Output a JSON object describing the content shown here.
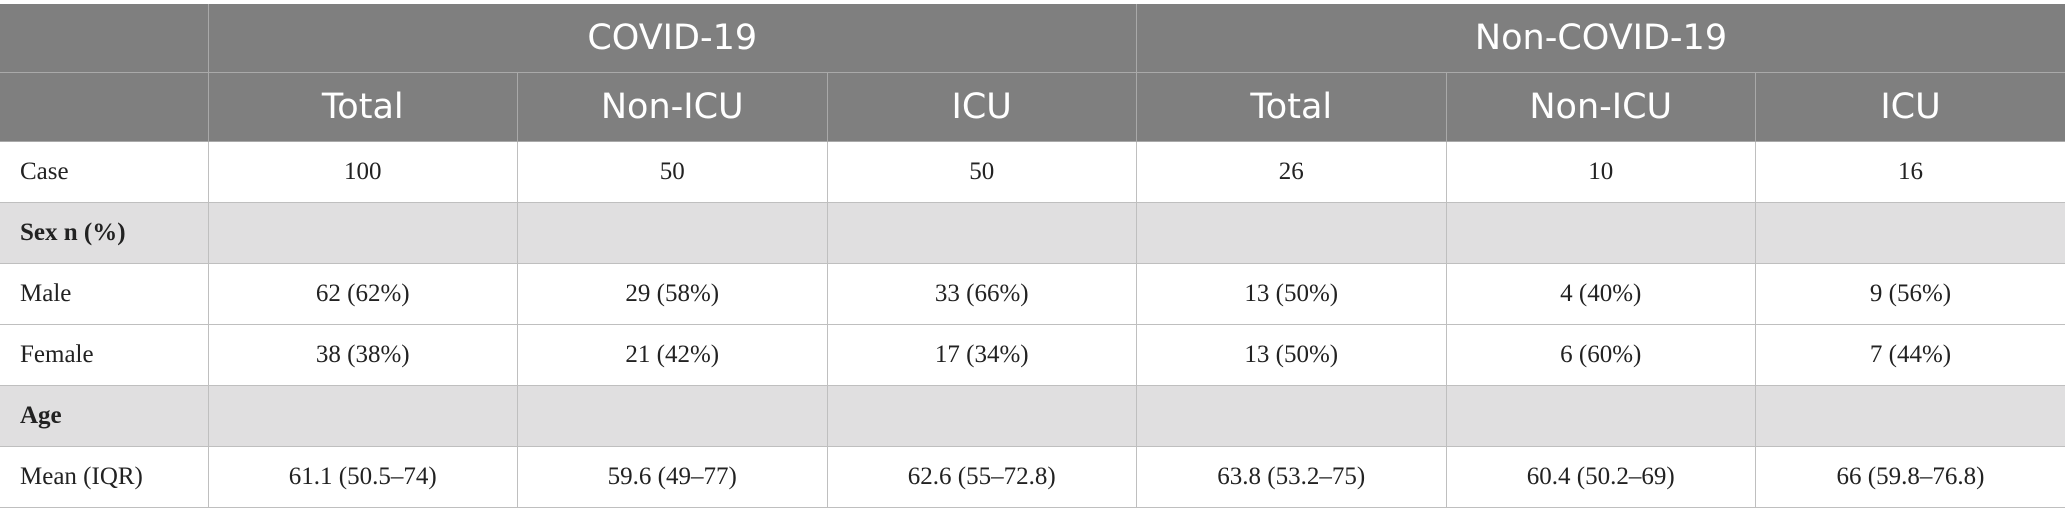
{
  "table": {
    "groups": [
      {
        "label": "COVID-19"
      },
      {
        "label": "Non-COVID-19"
      }
    ],
    "subheaders": [
      "Total",
      "Non-ICU",
      "ICU",
      "Total",
      "Non-ICU",
      "ICU"
    ],
    "rows": [
      {
        "label": "Case",
        "section": false,
        "cells": [
          "100",
          "50",
          "50",
          "26",
          "10",
          "16"
        ]
      },
      {
        "label": "Sex n (%)",
        "section": true,
        "cells": [
          "",
          "",
          "",
          "",
          "",
          ""
        ]
      },
      {
        "label": "Male",
        "section": false,
        "cells": [
          "62 (62%)",
          "29 (58%)",
          "33 (66%)",
          "13 (50%)",
          "4 (40%)",
          "9 (56%)"
        ]
      },
      {
        "label": "Female",
        "section": false,
        "cells": [
          "38 (38%)",
          "21 (42%)",
          "17 (34%)",
          "13 (50%)",
          "6 (60%)",
          "7 (44%)"
        ]
      },
      {
        "label": "Age",
        "section": true,
        "cells": [
          "",
          "",
          "",
          "",
          "",
          ""
        ]
      },
      {
        "label": "Mean (IQR)",
        "section": false,
        "cells": [
          "61.1 (50.5–74)",
          "59.6 (49–77)",
          "62.6 (55–72.8)",
          "63.8 (53.2–75)",
          "60.4 (50.2–69)",
          "66 (59.8–76.8)"
        ]
      }
    ]
  }
}
